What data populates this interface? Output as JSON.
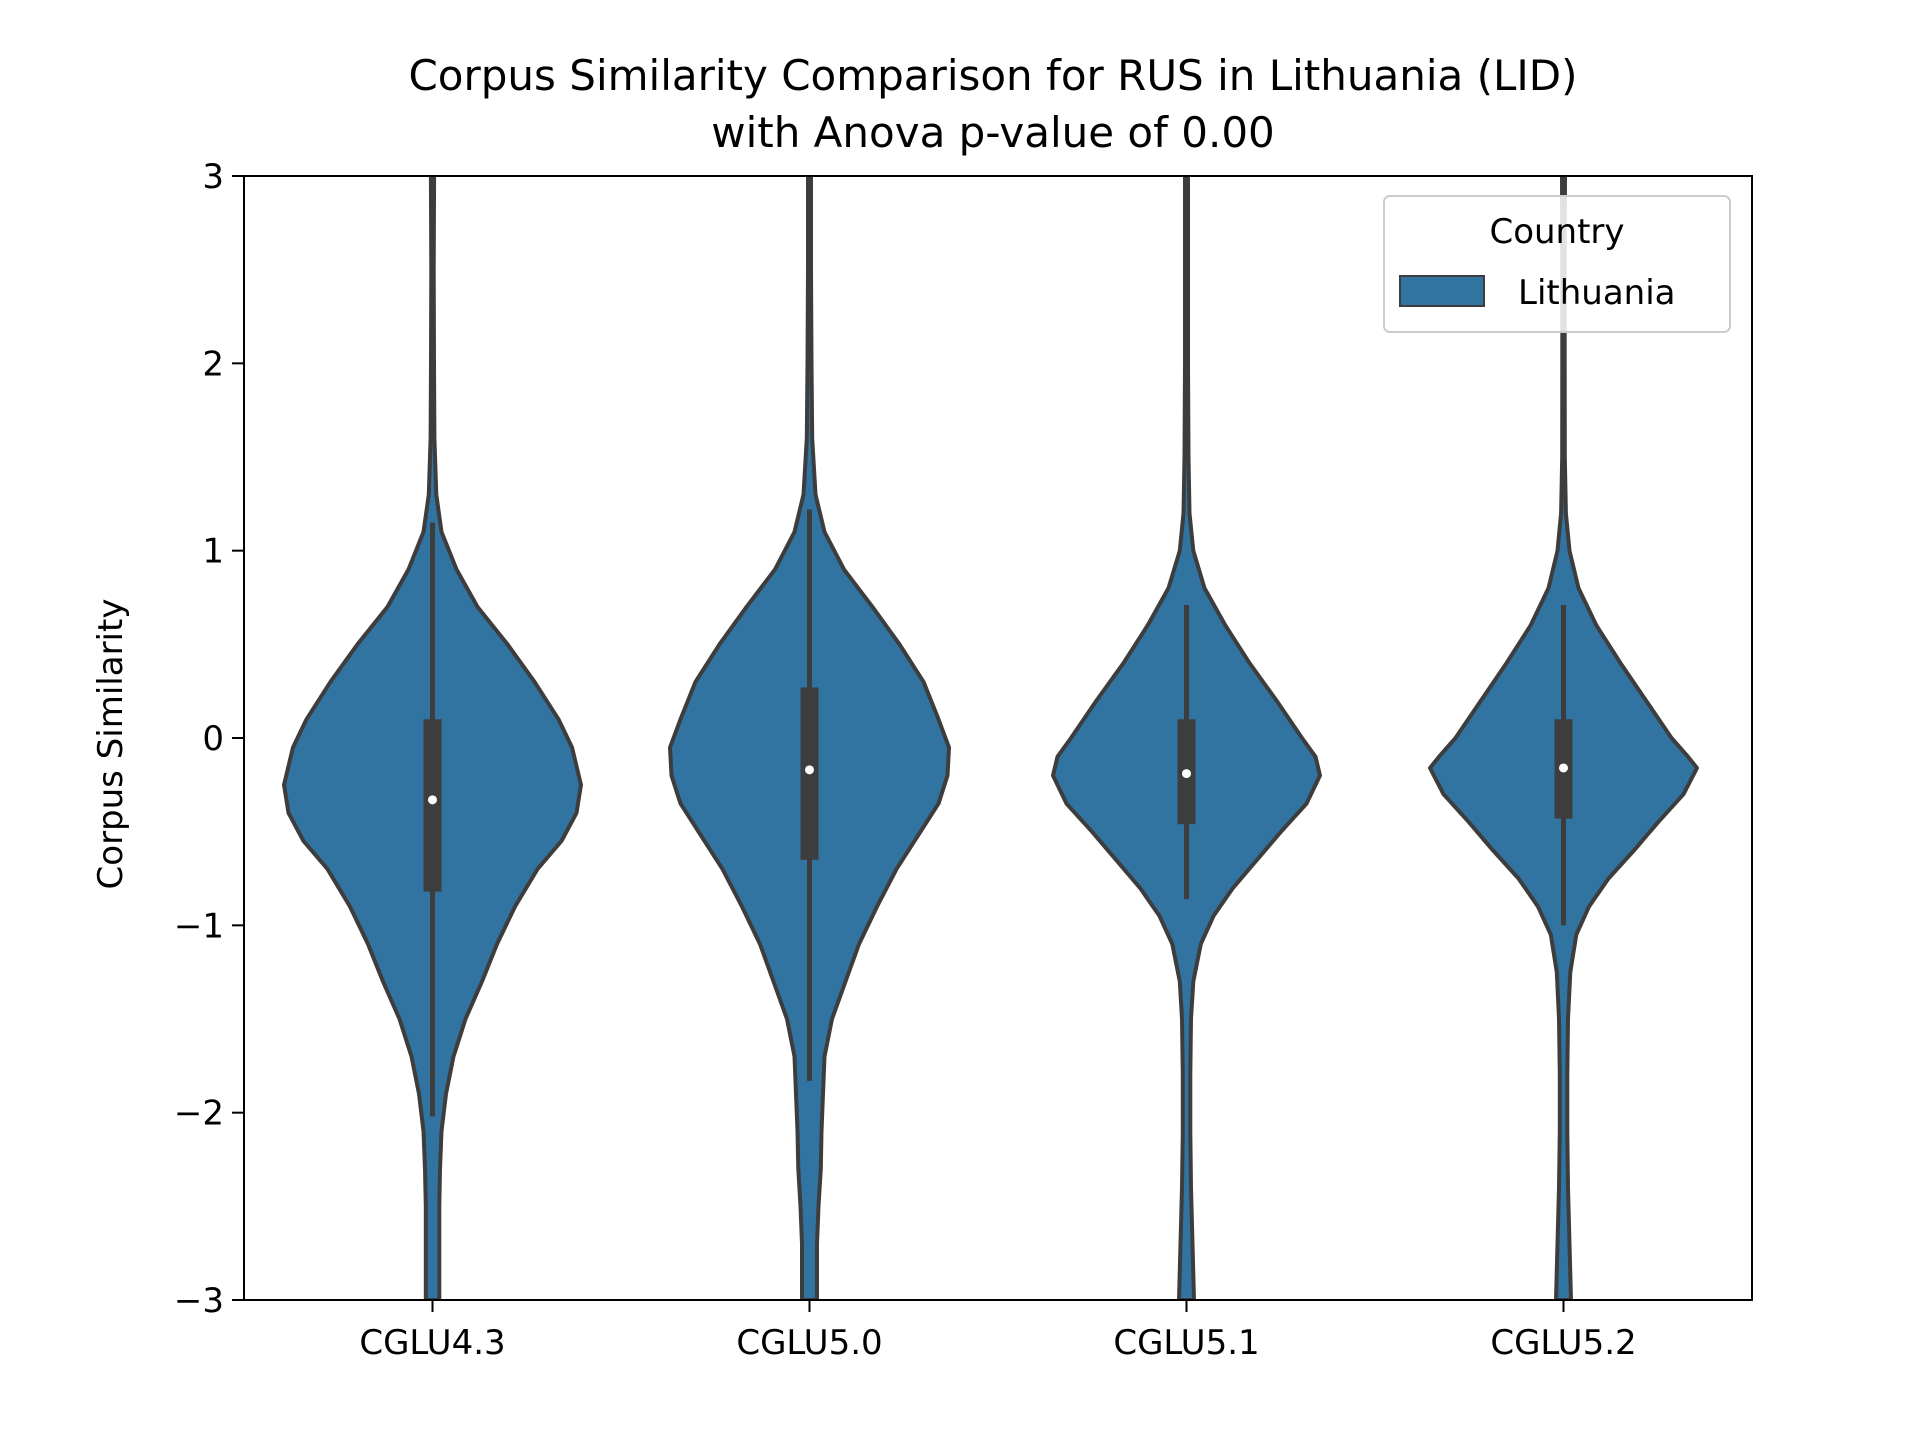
{
  "chart_data": {
    "type": "violin",
    "title_line1": "Corpus Similarity Comparison for RUS in Lithuania (LID)",
    "title_line2": "with Anova p-value of 0.00",
    "xlabel": "",
    "ylabel": "Corpus Similarity",
    "ylim": [
      -3,
      3
    ],
    "yticks": [
      -3,
      -2,
      -1,
      0,
      1,
      2,
      3
    ],
    "ytick_labels": [
      "−3",
      "−2",
      "−1",
      "0",
      "1",
      "2",
      "3"
    ],
    "categories": [
      "CGLU4.3",
      "CGLU5.0",
      "CGLU5.1",
      "CGLU5.2"
    ],
    "legend": {
      "title": "Country",
      "entries": [
        "Lithuania"
      ],
      "position": "top-right"
    },
    "grid": false,
    "colors": {
      "fill": "#3274a1",
      "edge": "#3d3d3d",
      "median": "#ffffff",
      "axis": "#000000"
    },
    "series": [
      {
        "name": "Lithuania",
        "stats": [
          {
            "median": -0.33,
            "q1": -0.82,
            "q3": 0.1,
            "whisker_low": -2.02,
            "whisker_high": 1.15
          },
          {
            "median": -0.17,
            "q1": -0.65,
            "q3": 0.27,
            "whisker_low": -1.83,
            "whisker_high": 1.22
          },
          {
            "median": -0.19,
            "q1": -0.46,
            "q3": 0.1,
            "whisker_low": -0.86,
            "whisker_high": 0.71
          },
          {
            "median": -0.16,
            "q1": -0.43,
            "q3": 0.1,
            "whisker_low": -1.0,
            "whisker_high": 0.71
          }
        ],
        "density_profiles": [
          [
            [
              3,
              0.011
            ],
            [
              2.5,
              0.008
            ],
            [
              2,
              0.01
            ],
            [
              1.6,
              0.013
            ],
            [
              1.3,
              0.025
            ],
            [
              1.1,
              0.06
            ],
            [
              0.9,
              0.16
            ],
            [
              0.7,
              0.3
            ],
            [
              0.5,
              0.5
            ],
            [
              0.3,
              0.68
            ],
            [
              0.1,
              0.84
            ],
            [
              -0.05,
              0.93
            ],
            [
              -0.25,
              0.99
            ],
            [
              -0.4,
              0.96
            ],
            [
              -0.55,
              0.86
            ],
            [
              -0.7,
              0.7
            ],
            [
              -0.9,
              0.55
            ],
            [
              -1.1,
              0.43
            ],
            [
              -1.3,
              0.33
            ],
            [
              -1.5,
              0.22
            ],
            [
              -1.7,
              0.14
            ],
            [
              -1.9,
              0.09
            ],
            [
              -2.1,
              0.06
            ],
            [
              -2.3,
              0.05
            ],
            [
              -2.5,
              0.045
            ],
            [
              -2.7,
              0.045
            ],
            [
              -3,
              0.045
            ]
          ],
          [
            [
              3,
              0.01
            ],
            [
              2.5,
              0.01
            ],
            [
              2,
              0.013
            ],
            [
              1.6,
              0.018
            ],
            [
              1.3,
              0.04
            ],
            [
              1.1,
              0.1
            ],
            [
              0.9,
              0.23
            ],
            [
              0.7,
              0.42
            ],
            [
              0.5,
              0.6
            ],
            [
              0.3,
              0.76
            ],
            [
              0.1,
              0.86
            ],
            [
              -0.05,
              0.93
            ],
            [
              -0.2,
              0.92
            ],
            [
              -0.35,
              0.86
            ],
            [
              -0.5,
              0.74
            ],
            [
              -0.7,
              0.58
            ],
            [
              -0.9,
              0.45
            ],
            [
              -1.1,
              0.33
            ],
            [
              -1.3,
              0.24
            ],
            [
              -1.5,
              0.15
            ],
            [
              -1.7,
              0.1
            ],
            [
              -1.9,
              0.09
            ],
            [
              -2.1,
              0.08
            ],
            [
              -2.3,
              0.075
            ],
            [
              -2.5,
              0.06
            ],
            [
              -2.7,
              0.05
            ],
            [
              -3,
              0.05
            ]
          ],
          [
            [
              3,
              0.01
            ],
            [
              2.5,
              0.01
            ],
            [
              2,
              0.01
            ],
            [
              1.5,
              0.013
            ],
            [
              1.2,
              0.02
            ],
            [
              1.0,
              0.045
            ],
            [
              0.8,
              0.12
            ],
            [
              0.6,
              0.26
            ],
            [
              0.4,
              0.42
            ],
            [
              0.2,
              0.6
            ],
            [
              0.0,
              0.77
            ],
            [
              -0.1,
              0.86
            ],
            [
              -0.2,
              0.89
            ],
            [
              -0.35,
              0.8
            ],
            [
              -0.5,
              0.63
            ],
            [
              -0.65,
              0.47
            ],
            [
              -0.8,
              0.31
            ],
            [
              -0.95,
              0.18
            ],
            [
              -1.1,
              0.095
            ],
            [
              -1.3,
              0.045
            ],
            [
              -1.5,
              0.03
            ],
            [
              -1.8,
              0.025
            ],
            [
              -2.1,
              0.025
            ],
            [
              -2.4,
              0.03
            ],
            [
              -2.7,
              0.04
            ],
            [
              -3,
              0.05
            ]
          ],
          [
            [
              3,
              0.01
            ],
            [
              2.5,
              0.008
            ],
            [
              2,
              0.008
            ],
            [
              1.5,
              0.009
            ],
            [
              1.2,
              0.016
            ],
            [
              1.0,
              0.04
            ],
            [
              0.8,
              0.1
            ],
            [
              0.6,
              0.22
            ],
            [
              0.4,
              0.38
            ],
            [
              0.2,
              0.55
            ],
            [
              0.0,
              0.72
            ],
            [
              -0.1,
              0.83
            ],
            [
              -0.16,
              0.89
            ],
            [
              -0.3,
              0.8
            ],
            [
              -0.45,
              0.63
            ],
            [
              -0.6,
              0.47
            ],
            [
              -0.75,
              0.3
            ],
            [
              -0.9,
              0.17
            ],
            [
              -1.05,
              0.085
            ],
            [
              -1.25,
              0.045
            ],
            [
              -1.5,
              0.03
            ],
            [
              -1.8,
              0.025
            ],
            [
              -2.1,
              0.025
            ],
            [
              -2.4,
              0.03
            ],
            [
              -2.7,
              0.04
            ],
            [
              -3,
              0.05
            ]
          ]
        ]
      }
    ]
  }
}
